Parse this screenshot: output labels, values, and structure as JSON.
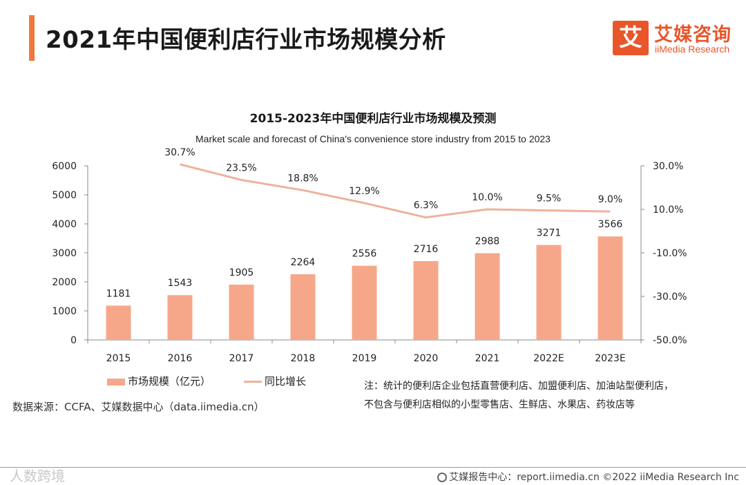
{
  "header": {
    "title": "2021年中国便利店行业市场规模分析",
    "logo_cn": "艾媒咨询",
    "logo_en": "iiMedia Research",
    "logo_glyph": "艾",
    "accent_color": "#f0783c",
    "brand_color": "#e8562a"
  },
  "chart_data": {
    "type": "bar",
    "title": "2015-2023年中国便利店行业市场规模及预测",
    "subtitle": "Market scale and forecast of China's convenience store industry from 2015 to 2023",
    "categories": [
      "2015",
      "2016",
      "2017",
      "2018",
      "2019",
      "2020",
      "2021",
      "2022E",
      "2023E"
    ],
    "series": [
      {
        "name": "市场规模（亿元）",
        "kind": "bar",
        "axis": "left",
        "color": "#f6a78a",
        "values": [
          1181,
          1543,
          1905,
          2264,
          2556,
          2716,
          2988,
          3271,
          3566
        ],
        "labels": [
          "1181",
          "1543",
          "1905",
          "2264",
          "2556",
          "2716",
          "2988",
          "3271",
          "3566"
        ]
      },
      {
        "name": "同比增长",
        "kind": "line",
        "axis": "right",
        "color": "#eeb29c",
        "values": [
          null,
          30.7,
          23.5,
          18.8,
          12.9,
          6.3,
          10.0,
          9.5,
          9.0
        ],
        "labels": [
          null,
          "30.7%",
          "23.5%",
          "18.8%",
          "12.9%",
          "6.3%",
          "10.0%",
          "9.5%",
          "9.0%"
        ]
      }
    ],
    "y_left": {
      "range": [
        0,
        6000
      ],
      "ticks": [
        "0",
        "1000",
        "2000",
        "3000",
        "4000",
        "5000",
        "6000"
      ]
    },
    "y_right": {
      "range": [
        -50,
        30
      ],
      "ticks": [
        "-50.0%",
        "-30.0%",
        "-10.0%",
        "10.0%",
        "30.0%"
      ]
    },
    "grid": false,
    "legend_position": "bottom-left"
  },
  "note": {
    "line1": "注：统计的便利店企业包括直营便利店、加盟便利店、加油站型便利店，",
    "line2": "不包含与便利店相似的小型零售店、生鲜店、水果店、药妆店等"
  },
  "source": "数据来源：CCFA、艾媒数据中心（data.iimedia.cn）",
  "footer": "艾媒报告中心：report.iimedia.cn  ©2022  iiMedia Research  Inc",
  "watermark": "人数跨境"
}
